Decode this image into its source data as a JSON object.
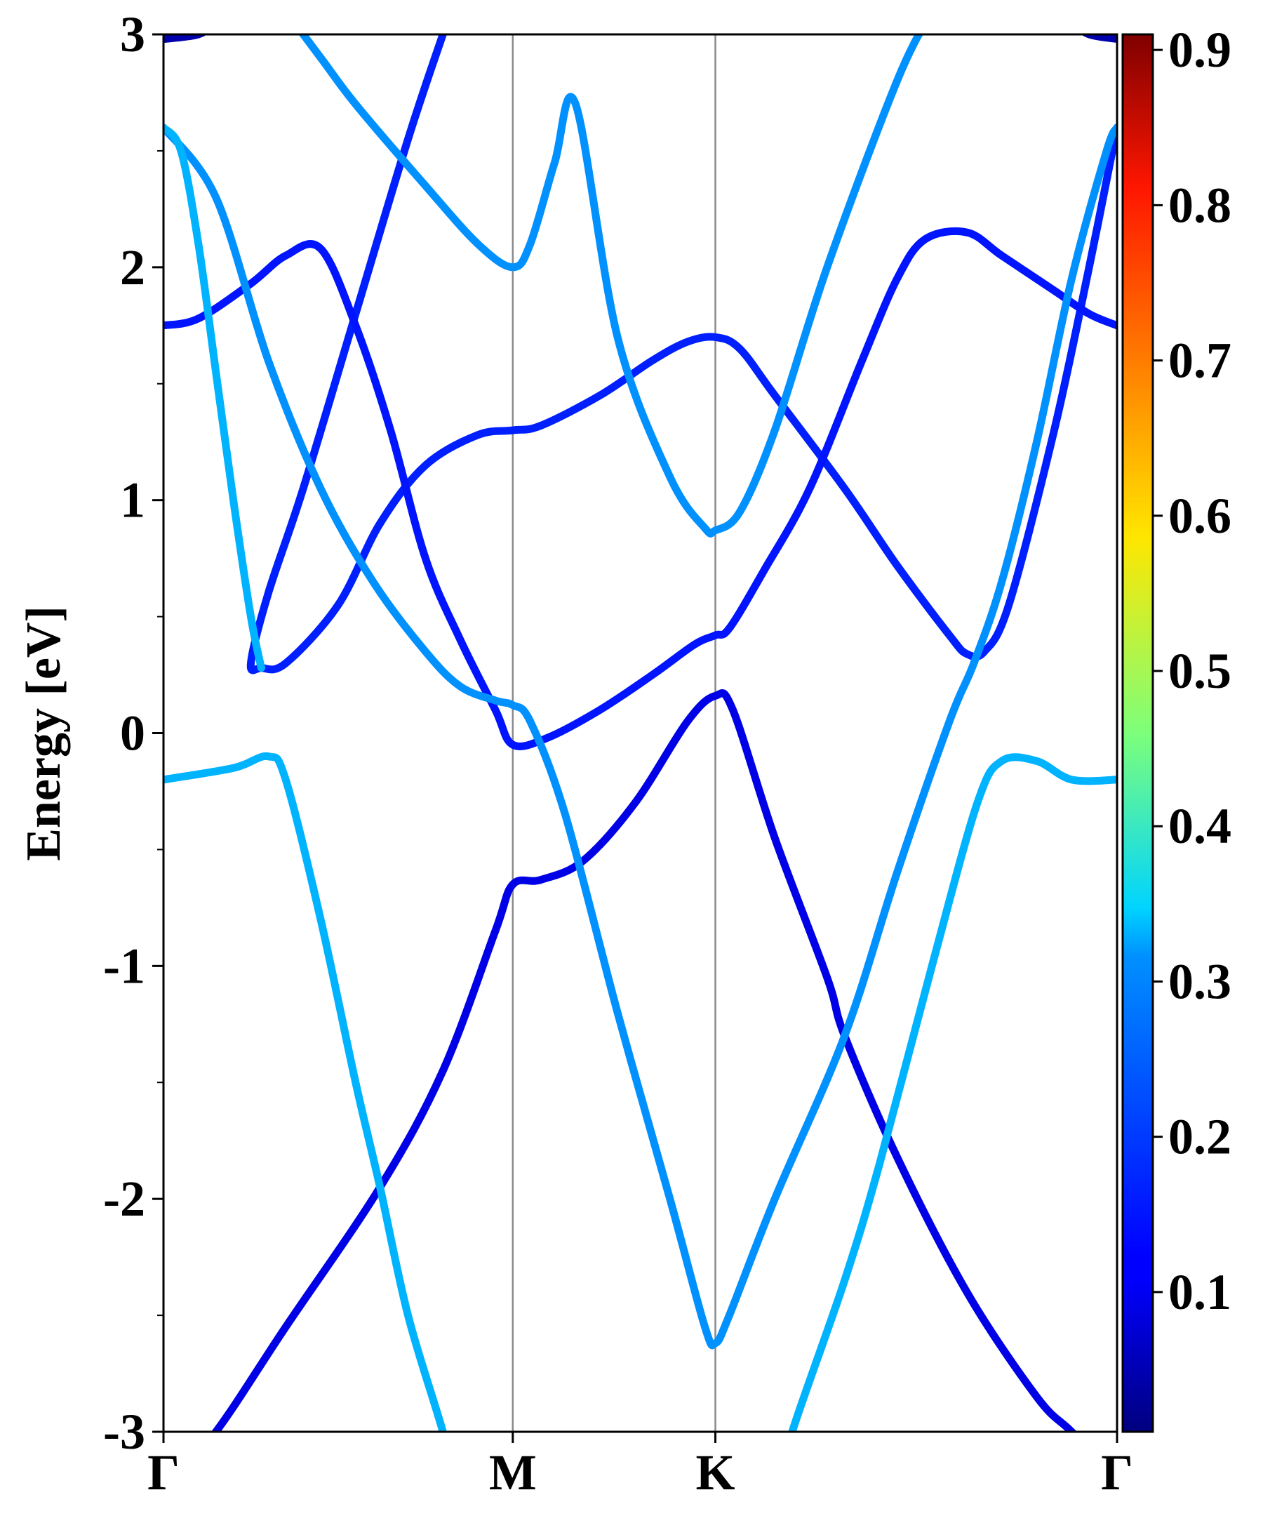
{
  "chart_data": {
    "type": "line",
    "ylabel": "Energy [eV]",
    "ylim": [
      -3,
      3
    ],
    "yticks": [
      "3",
      "2",
      "1",
      "0",
      "-1",
      "-2",
      "-3"
    ],
    "ytick_values": [
      3,
      2,
      1,
      0,
      -1,
      -2,
      -3
    ],
    "xlim": [
      0,
      2.73
    ],
    "kpoints": [
      {
        "label": "Γ",
        "x": 0
      },
      {
        "label": "M",
        "x": 1.0
      },
      {
        "label": "K",
        "x": 1.58
      },
      {
        "label": "Γ",
        "x": 2.73
      }
    ],
    "colorbar": {
      "colormap": "jet",
      "range": [
        0.01,
        0.91
      ],
      "tick_values": [
        0.9,
        0.8,
        0.7,
        0.6,
        0.5,
        0.4,
        0.3,
        0.2,
        0.1
      ],
      "tick_labels": [
        "0.9",
        "0.8",
        "0.7",
        "0.6",
        "0.5",
        "0.4",
        "0.3",
        "0.2",
        "0.1"
      ]
    },
    "series": [
      {
        "weight": 0.1,
        "points": [
          [
            0,
            -3.25
          ],
          [
            0.15,
            -3.0
          ],
          [
            0.35,
            -2.55
          ],
          [
            0.62,
            -1.95
          ],
          [
            0.8,
            -1.45
          ],
          [
            0.95,
            -0.85
          ],
          [
            1.0,
            -0.65
          ],
          [
            1.08,
            -0.63
          ],
          [
            1.2,
            -0.55
          ],
          [
            1.35,
            -0.3
          ],
          [
            1.5,
            0.05
          ],
          [
            1.58,
            0.16
          ],
          [
            1.63,
            0.1
          ],
          [
            1.75,
            -0.45
          ],
          [
            1.9,
            -1.05
          ],
          [
            1.95,
            -1.3
          ],
          [
            2.1,
            -1.82
          ],
          [
            2.3,
            -2.4
          ],
          [
            2.5,
            -2.85
          ],
          [
            2.6,
            -3.0
          ],
          [
            2.73,
            -3.2
          ]
        ]
      },
      {
        "weight": 0.28,
        "points": [
          [
            0,
            -0.2
          ],
          [
            0.2,
            -0.15
          ],
          [
            0.3,
            -0.1
          ],
          [
            0.35,
            -0.2
          ],
          [
            0.45,
            -0.8
          ],
          [
            0.55,
            -1.5
          ],
          [
            0.62,
            -1.95
          ],
          [
            0.7,
            -2.5
          ],
          [
            0.8,
            -3.0
          ],
          [
            0.85,
            -3.3
          ]
        ]
      },
      {
        "weight": 0.28,
        "points": [
          [
            1.75,
            -3.3
          ],
          [
            1.8,
            -3.0
          ],
          [
            1.95,
            -2.35
          ],
          [
            2.05,
            -1.85
          ],
          [
            2.2,
            -1.0
          ],
          [
            2.33,
            -0.3
          ],
          [
            2.4,
            -0.12
          ],
          [
            2.5,
            -0.12
          ],
          [
            2.6,
            -0.2
          ],
          [
            2.73,
            -0.2
          ]
        ]
      },
      {
        "weight": 0.15,
        "points": [
          [
            0.8,
            3.0
          ],
          [
            0.7,
            2.55
          ],
          [
            0.55,
            1.8
          ],
          [
            0.4,
            1.05
          ],
          [
            0.3,
            0.6
          ],
          [
            0.25,
            0.3
          ],
          [
            0.28,
            0.28
          ],
          [
            0.35,
            0.3
          ],
          [
            0.5,
            0.55
          ],
          [
            0.62,
            0.9
          ],
          [
            0.75,
            1.15
          ],
          [
            0.9,
            1.28
          ],
          [
            1.0,
            1.3
          ],
          [
            1.08,
            1.32
          ],
          [
            1.25,
            1.45
          ],
          [
            1.4,
            1.6
          ],
          [
            1.5,
            1.68
          ],
          [
            1.58,
            1.7
          ],
          [
            1.65,
            1.65
          ],
          [
            1.75,
            1.45
          ],
          [
            1.95,
            1.05
          ],
          [
            2.1,
            0.72
          ],
          [
            2.25,
            0.42
          ],
          [
            2.3,
            0.34
          ],
          [
            2.35,
            0.35
          ],
          [
            2.42,
            0.55
          ],
          [
            2.55,
            1.3
          ],
          [
            2.65,
            2.0
          ],
          [
            2.73,
            2.6
          ]
        ]
      },
      {
        "weight": 0.14,
        "points": [
          [
            0,
            1.75
          ],
          [
            0.1,
            1.78
          ],
          [
            0.25,
            1.93
          ],
          [
            0.35,
            2.05
          ],
          [
            0.45,
            2.08
          ],
          [
            0.55,
            1.75
          ],
          [
            0.65,
            1.3
          ],
          [
            0.75,
            0.75
          ],
          [
            0.85,
            0.4
          ],
          [
            0.95,
            0.1
          ],
          [
            1.0,
            -0.05
          ],
          [
            1.1,
            -0.02
          ],
          [
            1.25,
            0.1
          ],
          [
            1.4,
            0.25
          ],
          [
            1.52,
            0.38
          ],
          [
            1.58,
            0.42
          ],
          [
            1.62,
            0.45
          ],
          [
            1.72,
            0.7
          ],
          [
            1.85,
            1.05
          ],
          [
            2.0,
            1.6
          ],
          [
            2.1,
            1.95
          ],
          [
            2.18,
            2.12
          ],
          [
            2.3,
            2.15
          ],
          [
            2.4,
            2.05
          ],
          [
            2.55,
            1.9
          ],
          [
            2.65,
            1.8
          ],
          [
            2.73,
            1.75
          ]
        ]
      },
      {
        "weight": 0.25,
        "points": [
          [
            0,
            2.6
          ],
          [
            0.15,
            2.3
          ],
          [
            0.3,
            1.6
          ],
          [
            0.45,
            1.05
          ],
          [
            0.6,
            0.65
          ],
          [
            0.75,
            0.35
          ],
          [
            0.85,
            0.2
          ],
          [
            0.95,
            0.14
          ],
          [
            1.0,
            0.12
          ],
          [
            1.05,
            0.05
          ],
          [
            1.15,
            -0.35
          ],
          [
            1.3,
            -1.2
          ],
          [
            1.45,
            -2.0
          ],
          [
            1.55,
            -2.55
          ],
          [
            1.58,
            -2.62
          ],
          [
            1.62,
            -2.5
          ],
          [
            1.75,
            -2.0
          ],
          [
            1.95,
            -1.3
          ],
          [
            2.1,
            -0.6
          ],
          [
            2.25,
            0.05
          ],
          [
            2.32,
            0.3
          ],
          [
            2.4,
            0.65
          ],
          [
            2.5,
            1.25
          ],
          [
            2.6,
            1.95
          ],
          [
            2.7,
            2.5
          ],
          [
            2.73,
            2.6
          ]
        ]
      },
      {
        "weight": 0.28,
        "points": [
          [
            0,
            2.6
          ],
          [
            0.05,
            2.5
          ],
          [
            0.1,
            2.1
          ],
          [
            0.15,
            1.55
          ],
          [
            0.2,
            1.0
          ],
          [
            0.25,
            0.5
          ],
          [
            0.28,
            0.28
          ]
        ]
      },
      {
        "weight": 0.25,
        "points": [
          [
            0.3,
            3.2
          ],
          [
            0.45,
            2.9
          ],
          [
            0.55,
            2.7
          ],
          [
            0.75,
            2.35
          ],
          [
            0.9,
            2.1
          ],
          [
            1.0,
            2.0
          ],
          [
            1.05,
            2.1
          ],
          [
            1.12,
            2.45
          ],
          [
            1.18,
            2.7
          ],
          [
            1.3,
            1.7
          ],
          [
            1.45,
            1.1
          ],
          [
            1.55,
            0.88
          ],
          [
            1.58,
            0.87
          ],
          [
            1.65,
            0.95
          ],
          [
            1.75,
            1.3
          ],
          [
            1.9,
            2.0
          ],
          [
            2.1,
            2.8
          ],
          [
            2.2,
            3.1
          ]
        ]
      },
      {
        "weight": 0.05,
        "points": [
          [
            0,
            2.98
          ],
          [
            0.1,
            3.0
          ],
          [
            0.15,
            3.05
          ]
        ]
      },
      {
        "weight": 0.05,
        "points": [
          [
            2.6,
            3.05
          ],
          [
            2.65,
            3.0
          ],
          [
            2.73,
            2.98
          ]
        ]
      }
    ]
  }
}
